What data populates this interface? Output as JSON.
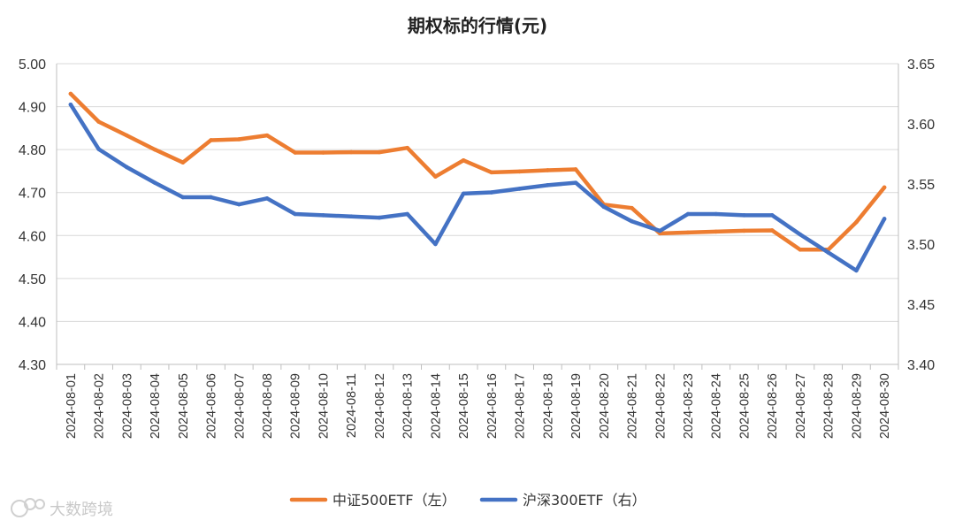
{
  "chart_data": {
    "type": "line",
    "title": "期权标的行情(元)",
    "categories": [
      "2024-08-01",
      "2024-08-02",
      "2024-08-03",
      "2024-08-04",
      "2024-08-05",
      "2024-08-06",
      "2024-08-07",
      "2024-08-08",
      "2024-08-09",
      "2024-08-10",
      "2024-08-11",
      "2024-08-12",
      "2024-08-13",
      "2024-08-14",
      "2024-08-15",
      "2024-08-16",
      "2024-08-17",
      "2024-08-18",
      "2024-08-19",
      "2024-08-20",
      "2024-08-21",
      "2024-08-22",
      "2024-08-23",
      "2024-08-24",
      "2024-08-25",
      "2024-08-26",
      "2024-08-27",
      "2024-08-28",
      "2024-08-29",
      "2024-08-30"
    ],
    "y_left": {
      "min": 4.3,
      "max": 5.0,
      "step": 0.1,
      "ticks": [
        "4.30",
        "4.40",
        "4.50",
        "4.60",
        "4.70",
        "4.80",
        "4.90",
        "5.00"
      ]
    },
    "y_right": {
      "min": 3.4,
      "max": 3.65,
      "step": 0.05,
      "ticks": [
        "3.40",
        "3.45",
        "3.50",
        "3.55",
        "3.60",
        "3.65"
      ]
    },
    "grid": true,
    "legend_position": "bottom",
    "series": [
      {
        "name": "中证500ETF（左）",
        "axis": "left",
        "color": "#ED7D31",
        "values": [
          4.93,
          4.865,
          4.833,
          4.8,
          4.77,
          4.822,
          4.824,
          4.833,
          4.793,
          4.793,
          4.794,
          4.794,
          4.804,
          4.737,
          4.775,
          4.747,
          4.749,
          4.752,
          4.754,
          4.672,
          4.664,
          4.605,
          4.607,
          4.609,
          4.611,
          4.612,
          4.567,
          4.567,
          4.631,
          4.712
        ]
      },
      {
        "name": "沪深300ETF（右）",
        "axis": "right",
        "color": "#4472C4",
        "values": [
          3.616,
          3.579,
          3.564,
          3.551,
          3.539,
          3.539,
          3.533,
          3.538,
          3.525,
          3.524,
          3.523,
          3.522,
          3.525,
          3.5,
          3.542,
          3.543,
          3.546,
          3.549,
          3.551,
          3.531,
          3.519,
          3.511,
          3.525,
          3.525,
          3.524,
          3.524,
          3.508,
          3.493,
          3.478,
          3.521
        ]
      }
    ]
  },
  "watermark": {
    "text": "大数跨境"
  }
}
